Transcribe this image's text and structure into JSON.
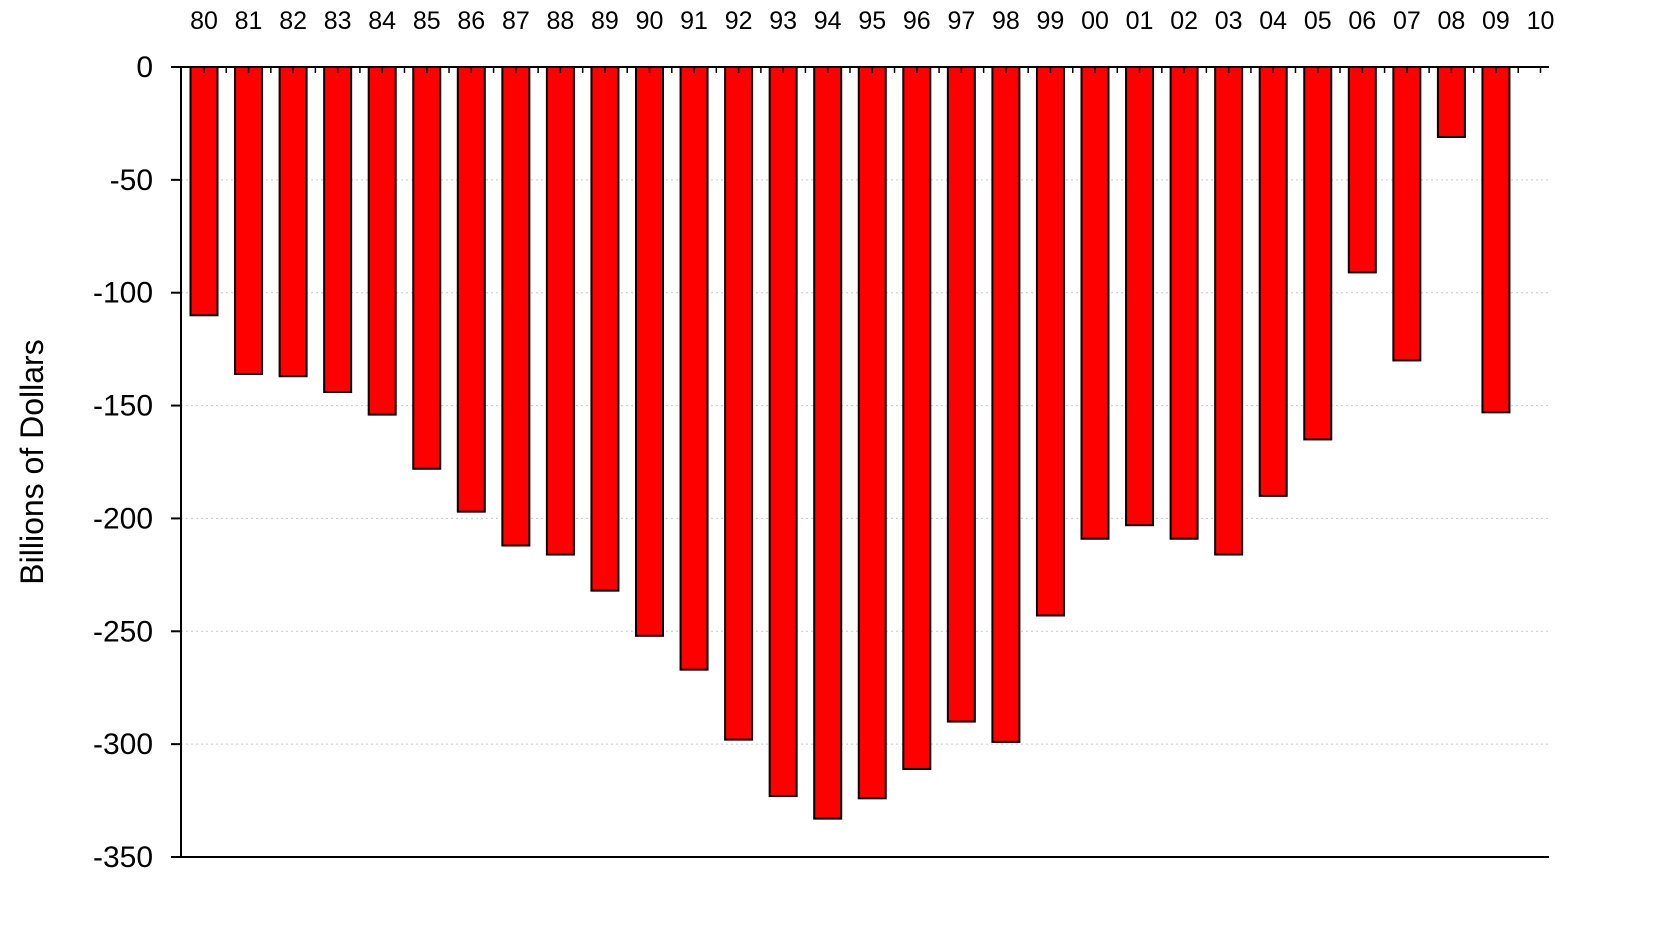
{
  "chart_data": {
    "type": "bar",
    "title": "",
    "xlabel": "",
    "ylabel": "Billions of Dollars",
    "categories": [
      "80",
      "81",
      "82",
      "83",
      "84",
      "85",
      "86",
      "87",
      "88",
      "89",
      "90",
      "91",
      "92",
      "93",
      "94",
      "95",
      "96",
      "97",
      "98",
      "99",
      "00",
      "01",
      "02",
      "03",
      "04",
      "05",
      "06",
      "07",
      "08",
      "09",
      "10"
    ],
    "values": [
      -110,
      -136,
      -137,
      -144,
      -154,
      -178,
      -197,
      -212,
      -216,
      -232,
      -252,
      -267,
      -298,
      -323,
      -333,
      -324,
      -311,
      -290,
      -299,
      -243,
      -209,
      -203,
      -209,
      -216,
      -190,
      -165,
      -91,
      -130,
      -31,
      -153,
      null
    ],
    "ylim": [
      -350,
      0
    ],
    "yticks": [
      0,
      -50,
      -100,
      -150,
      -200,
      -250,
      -300,
      -350
    ],
    "grid": true,
    "x_axis_position": "top",
    "bar_color": "#ff0000",
    "bar_edge_color": "#000000",
    "grid_color": "#c8c8c8"
  }
}
